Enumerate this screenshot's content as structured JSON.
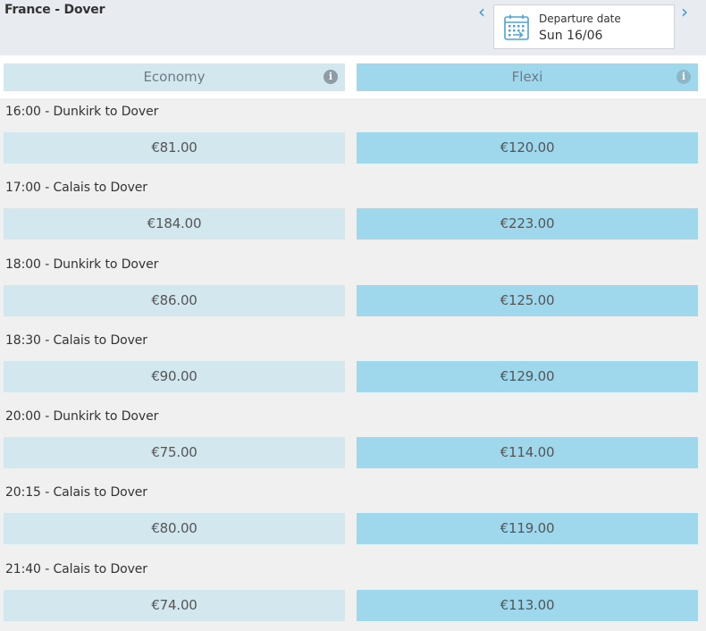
{
  "header": {
    "route": "France - Dover",
    "prev_arrow": "‹",
    "next_arrow": "›",
    "date_label": "Departure date",
    "date_value": "Sun 16/06"
  },
  "columns": {
    "economy": "Economy",
    "flexi": "Flexi",
    "info_glyph": "i"
  },
  "sailings": [
    {
      "title": "16:00 - Dunkirk to Dover",
      "economy": "€81.00",
      "flexi": "€120.00"
    },
    {
      "title": "17:00 - Calais to Dover",
      "economy": "€184.00",
      "flexi": "€223.00"
    },
    {
      "title": "18:00 - Dunkirk to Dover",
      "economy": "€86.00",
      "flexi": "€125.00"
    },
    {
      "title": "18:30 - Calais to Dover",
      "economy": "€90.00",
      "flexi": "€129.00"
    },
    {
      "title": "20:00 - Dunkirk to Dover",
      "economy": "€75.00",
      "flexi": "€114.00"
    },
    {
      "title": "20:15 - Calais to Dover",
      "economy": "€80.00",
      "flexi": "€119.00"
    },
    {
      "title": "21:40 - Calais to Dover",
      "economy": "€74.00",
      "flexi": "€113.00"
    }
  ],
  "colors": {
    "economy_bg": "#d3e7ef",
    "flexi_bg": "#9fd8ed",
    "accent": "#3d92d0"
  },
  "icons": {
    "calendar": "calendar-icon",
    "info": "info-icon",
    "prev": "chevron-left-icon",
    "next": "chevron-right-icon"
  }
}
